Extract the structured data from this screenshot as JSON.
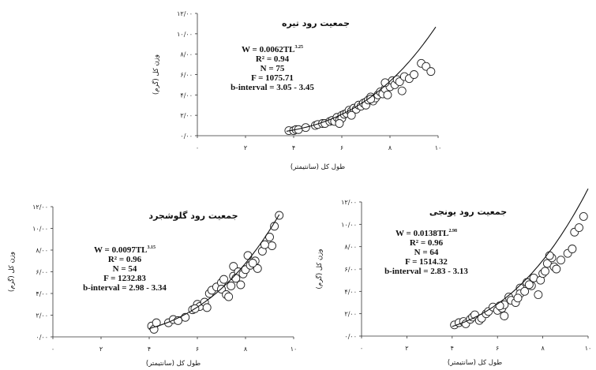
{
  "chart_data": [
    {
      "type": "scatter",
      "title": "جمعیت رود تیره",
      "xlabel": "طول کل (سانتیمتر)",
      "ylabel": "وزن کل (گرم)",
      "xlim": [
        0,
        10
      ],
      "ylim": [
        0,
        12
      ],
      "x_ticks": [
        "۰",
        "۲",
        "۴",
        "۶",
        "۸",
        "۱۰"
      ],
      "y_ticks": [
        "۰/۰۰",
        "۲/۰۰",
        "۴/۰۰",
        "۶/۰۰",
        "۸/۰۰",
        "۱۰/۰۰",
        "۱۲/۰۰"
      ],
      "annotations": [
        "W = 0.0062TL",
        "R² = 0.94",
        "N = 75",
        "F = 1075.71",
        "b-interval = 3.05 - 3.45"
      ],
      "exponent": "3.25",
      "fit": {
        "a": 0.0062,
        "b": 3.25,
        "x_range": [
          3.7,
          9.9
        ]
      },
      "series": [
        {
          "x": [
            3.8,
            4.0,
            4.1,
            4.2,
            4.5,
            4.9,
            5.0,
            5.2,
            5.3,
            5.5,
            5.6,
            5.7,
            5.8,
            5.9,
            6.0,
            6.0,
            6.1,
            6.2,
            6.3,
            6.4,
            6.5,
            6.6,
            6.7,
            6.8,
            6.9,
            7.0,
            7.0,
            7.1,
            7.2,
            7.3,
            7.4,
            7.5,
            7.6,
            7.7,
            7.8,
            7.9,
            8.0,
            8.1,
            8.2,
            8.3,
            8.4,
            8.6,
            8.8,
            9.0,
            9.3,
            9.5,
            9.7,
            5.9,
            6.4,
            7.2,
            7.8,
            8.5
          ],
          "y": [
            0.5,
            0.5,
            0.6,
            0.6,
            0.8,
            1.0,
            1.1,
            1.2,
            1.2,
            1.4,
            1.5,
            1.4,
            1.8,
            1.5,
            2.0,
            1.7,
            2.1,
            2.2,
            2.5,
            2.4,
            2.7,
            2.6,
            3.0,
            2.9,
            3.2,
            3.3,
            3.0,
            3.5,
            3.8,
            3.4,
            3.7,
            4.0,
            4.3,
            4.1,
            4.6,
            4.0,
            4.8,
            5.4,
            5.0,
            5.5,
            5.3,
            5.8,
            5.6,
            6.0,
            7.1,
            6.8,
            6.3,
            1.2,
            2.0,
            3.6,
            5.2,
            4.4
          ]
        }
      ]
    },
    {
      "type": "scatter",
      "title": "جمعیت رود گلوشجرد",
      "xlabel": "طول کل (سانتیمتر)",
      "ylabel": "وزن کل (گرم)",
      "xlim": [
        0,
        10
      ],
      "ylim": [
        0,
        12
      ],
      "x_ticks": [
        "۰",
        "۲",
        "۴",
        "۶",
        "۸",
        "۱۰"
      ],
      "y_ticks": [
        "۰/۰۰",
        "۲/۰۰",
        "۴/۰۰",
        "۶/۰۰",
        "۸/۰۰",
        "۱۰/۰۰",
        "۱۲/۰۰"
      ],
      "annotations": [
        "W = 0.0097TL",
        "R² = 0.96",
        "N = 54",
        "F = 1232.83",
        "b-interval = 2.98 - 3.34"
      ],
      "exponent": "3.15",
      "fit": {
        "a": 0.0097,
        "b": 3.15,
        "x_range": [
          4.0,
          9.4
        ]
      },
      "series": [
        {
          "x": [
            4.1,
            4.2,
            4.3,
            4.8,
            5.0,
            5.2,
            5.5,
            5.8,
            6.0,
            6.1,
            6.3,
            6.5,
            6.6,
            6.8,
            7.0,
            7.0,
            7.1,
            7.2,
            7.4,
            7.5,
            7.5,
            7.7,
            7.8,
            7.9,
            8.0,
            8.1,
            8.2,
            8.4,
            8.5,
            8.7,
            9.0,
            9.1,
            9.2,
            9.4,
            5.9,
            6.4,
            7.3,
            7.6,
            8.3,
            8.8
          ],
          "y": [
            1.0,
            0.7,
            1.3,
            1.3,
            1.6,
            1.5,
            1.8,
            2.5,
            3.0,
            2.8,
            3.2,
            4.0,
            4.3,
            4.6,
            5.0,
            4.4,
            5.3,
            3.9,
            4.7,
            6.5,
            5.6,
            6.0,
            4.8,
            5.8,
            6.2,
            7.5,
            6.6,
            7.0,
            6.3,
            7.9,
            9.2,
            8.4,
            10.2,
            11.2,
            2.6,
            2.7,
            3.7,
            5.4,
            6.8,
            8.5
          ]
        }
      ]
    },
    {
      "type": "scatter",
      "title": "جمعیت رود یونجی",
      "xlabel": "طول کل (سانتیمتر)",
      "ylabel": "وزن کل (گرم)",
      "xlim": [
        0,
        10
      ],
      "ylim": [
        0,
        12
      ],
      "x_ticks": [
        "۰",
        "۲",
        "۴",
        "۶",
        "۸",
        "۱۰"
      ],
      "y_ticks": [
        "۰/۰۰",
        "۲/۰۰",
        "۴/۰۰",
        "۶/۰۰",
        "۸/۰۰",
        "۱۰/۰۰",
        "۱۲/۰۰"
      ],
      "annotations": [
        "W = 0.0138TL",
        "R² = 0.96",
        "N = 64",
        "F = 1514.32",
        "b-interval = 2.83 - 3.13"
      ],
      "exponent": "2.98",
      "fit": {
        "a": 0.0138,
        "b": 2.98,
        "x_range": [
          4.0,
          10.0
        ]
      },
      "series": [
        {
          "x": [
            4.1,
            4.3,
            4.5,
            4.6,
            4.8,
            4.9,
            5.0,
            5.2,
            5.3,
            5.5,
            5.6,
            5.8,
            6.0,
            6.2,
            6.3,
            6.5,
            6.6,
            6.8,
            7.0,
            7.0,
            7.2,
            7.3,
            7.5,
            7.6,
            7.8,
            7.9,
            8.0,
            8.1,
            8.2,
            8.4,
            8.5,
            8.6,
            8.8,
            9.1,
            9.3,
            9.4,
            9.6,
            9.8,
            6.1,
            6.3,
            6.9,
            7.4,
            8.3
          ],
          "y": [
            1.0,
            1.2,
            1.3,
            1.1,
            1.5,
            1.7,
            1.9,
            1.4,
            1.6,
            2.0,
            2.2,
            2.6,
            2.3,
            2.5,
            2.8,
            3.5,
            3.2,
            3.0,
            4.3,
            3.8,
            4.0,
            4.8,
            4.5,
            5.2,
            3.7,
            5.0,
            5.6,
            5.8,
            6.5,
            7.0,
            6.2,
            6.0,
            6.8,
            7.4,
            7.8,
            9.3,
            9.7,
            10.7,
            2.7,
            1.8,
            3.4,
            4.6,
            7.2
          ]
        }
      ]
    }
  ]
}
